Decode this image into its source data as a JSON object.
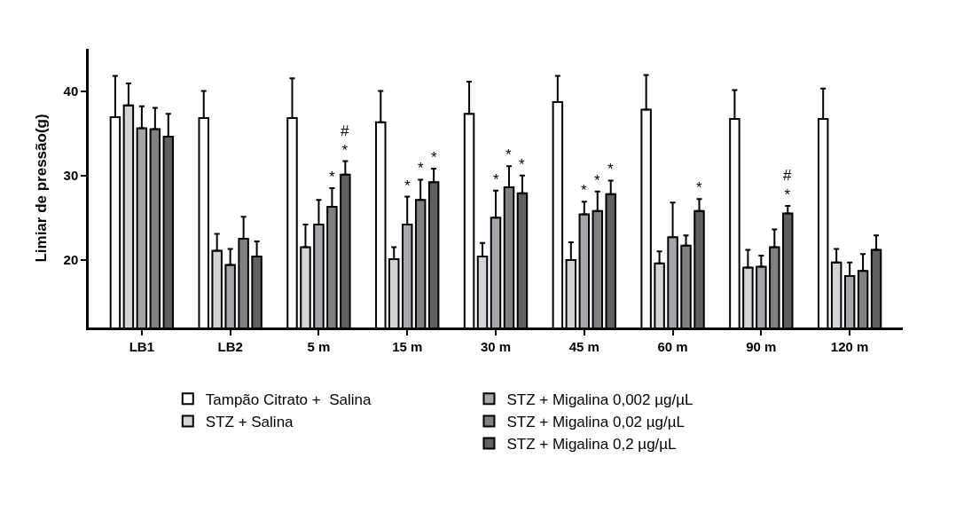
{
  "chart_data": {
    "type": "bar",
    "ylabel": "Limiar de pressão(g)",
    "categories": [
      "LB1",
      "LB2",
      "5 m",
      "15 m",
      "30 m",
      "45 m",
      "60 m",
      "90 m",
      "120 m"
    ],
    "ylim": [
      12,
      45
    ],
    "yticks": [
      20,
      30,
      40
    ],
    "legend": "bottom",
    "series": [
      {
        "name": "Tampão Citrato +  Salina",
        "color": "#ffffff",
        "values": [
          36.9,
          36.8,
          36.8,
          36.3,
          37.3,
          38.7,
          37.8,
          36.7,
          36.7
        ],
        "errors": [
          [
            36.9,
            41.8
          ],
          [
            36.8,
            40.0
          ],
          [
            36.8,
            41.5
          ],
          [
            36.3,
            40.0
          ],
          [
            37.3,
            41.1
          ],
          [
            38.7,
            41.8
          ],
          [
            37.8,
            41.9
          ],
          [
            36.7,
            40.1
          ],
          [
            36.7,
            40.3
          ]
        ]
      },
      {
        "name": "STZ + Salina",
        "color": "#d4d4d4",
        "values": [
          38.3,
          21.1,
          21.5,
          20.1,
          20.4,
          20.0,
          19.6,
          19.1,
          19.7
        ],
        "errors": [
          [
            38.3,
            40.9
          ],
          [
            21.1,
            23.1
          ],
          [
            21.5,
            24.2
          ],
          [
            20.1,
            21.5
          ],
          [
            20.4,
            22.0
          ],
          [
            20.0,
            22.1
          ],
          [
            19.6,
            21.0
          ],
          [
            19.1,
            21.2
          ],
          [
            19.7,
            21.3
          ]
        ]
      },
      {
        "name": "STZ + Migalina 0,002 µg/µL",
        "color": "#a6a6aa",
        "values": [
          35.6,
          19.4,
          24.2,
          24.2,
          25.0,
          25.4,
          22.7,
          19.2,
          18.1
        ],
        "errors": [
          [
            35.6,
            38.2
          ],
          [
            19.4,
            21.3
          ],
          [
            24.2,
            27.1
          ],
          [
            24.2,
            27.5
          ],
          [
            25.0,
            28.2
          ],
          [
            25.4,
            26.9
          ],
          [
            22.7,
            26.8
          ],
          [
            19.2,
            20.5
          ],
          [
            18.1,
            19.7
          ]
        ],
        "value_labels": [
          null,
          null,
          null,
          "*",
          "*",
          "*",
          null,
          null,
          null
        ]
      },
      {
        "name": "STZ + Migalina 0,02 µg/µL",
        "color": "#808080",
        "values": [
          35.5,
          22.5,
          26.3,
          27.1,
          28.6,
          25.8,
          21.7,
          21.5,
          18.7
        ],
        "errors": [
          [
            35.5,
            38.0
          ],
          [
            22.5,
            25.1
          ],
          [
            26.3,
            28.5
          ],
          [
            27.1,
            29.5
          ],
          [
            28.6,
            31.1
          ],
          [
            25.8,
            28.1
          ],
          [
            21.7,
            22.9
          ],
          [
            21.5,
            23.6
          ],
          [
            18.7,
            20.7
          ]
        ],
        "value_labels": [
          null,
          null,
          "*",
          "*",
          "*",
          "*",
          null,
          null,
          null
        ]
      },
      {
        "name": "STZ + Migalina 0,2 µg/µL",
        "color": "#606060",
        "values": [
          34.6,
          20.4,
          30.1,
          29.2,
          27.9,
          27.8,
          25.8,
          25.5,
          21.2
        ],
        "errors": [
          [
            34.6,
            37.3
          ],
          [
            20.4,
            22.2
          ],
          [
            30.1,
            31.7
          ],
          [
            29.2,
            30.8
          ],
          [
            27.9,
            30.0
          ],
          [
            27.8,
            29.4
          ],
          [
            25.8,
            27.2
          ],
          [
            25.5,
            26.4
          ],
          [
            21.2,
            22.9
          ]
        ],
        "value_labels": [
          null,
          null,
          "#\n*",
          "*",
          "*",
          "*",
          "*",
          "#\n*",
          null
        ]
      }
    ]
  }
}
